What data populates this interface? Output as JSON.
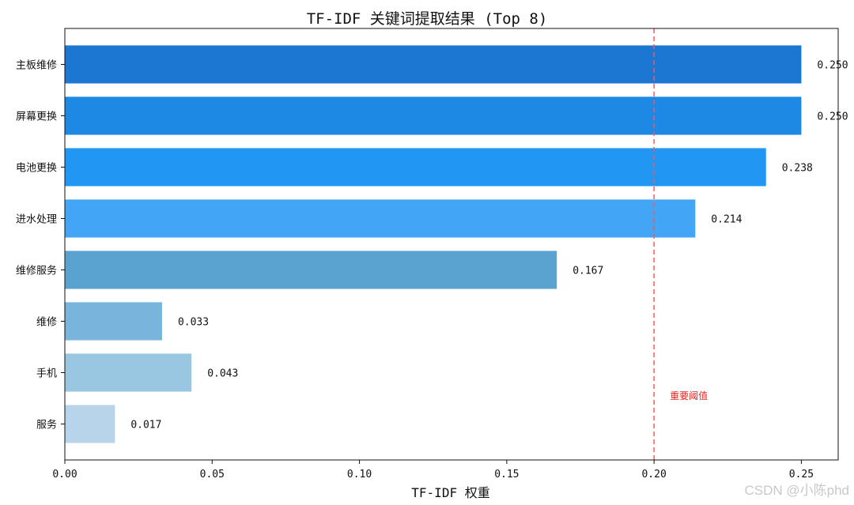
{
  "chart_data": {
    "type": "bar",
    "orientation": "horizontal",
    "title": "TF-IDF 关键词提取结果 (Top 8)",
    "xlabel": "TF-IDF 权重",
    "ylabel": "",
    "xlim": [
      0,
      0.2625
    ],
    "xticks": [
      0.0,
      0.05,
      0.1,
      0.15,
      0.2,
      0.25
    ],
    "xtick_labels": [
      "0.00",
      "0.05",
      "0.10",
      "0.15",
      "0.20",
      "0.25"
    ],
    "categories": [
      "主板维修",
      "屏幕更换",
      "电池更换",
      "进水处理",
      "维修服务",
      "维修",
      "手机",
      "服务"
    ],
    "values": [
      0.25,
      0.25,
      0.238,
      0.214,
      0.167,
      0.033,
      0.043,
      0.017
    ],
    "value_labels": [
      "0.250",
      "0.250",
      "0.238",
      "0.214",
      "0.167",
      "0.033",
      "0.043",
      "0.017"
    ],
    "colors": [
      "#1b77d2",
      "#1e88e5",
      "#2196f3",
      "#42a5f5",
      "#5aa2cf",
      "#78b4db",
      "#99c6e1",
      "#b7d4ea"
    ],
    "threshold": {
      "value": 0.2,
      "label": "重要阈值",
      "color": "#ff5555"
    },
    "grid": false,
    "legend": "none"
  },
  "watermark": "CSDN @小陈phd"
}
